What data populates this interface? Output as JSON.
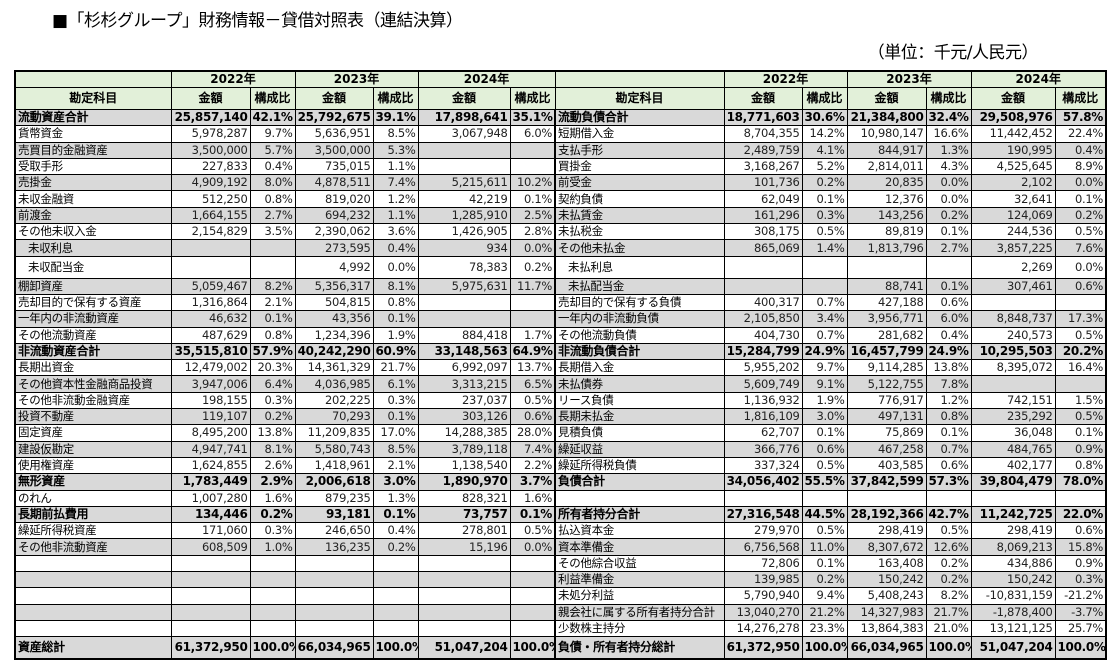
{
  "title": "■「杉杉グループ」財務情報－貸借対照表（連結決算）",
  "unit": "（単位：千元/人民元）",
  "colors": {
    "header_bg": "#e2f0d9",
    "stripe": "#d9d9d9"
  },
  "header": {
    "account": "勘定科目",
    "years": [
      "2022年",
      "2023年",
      "2024年"
    ],
    "amount": "金額",
    "ratio": "構成比"
  },
  "left_rows": [
    {
      "type": "total",
      "c": [
        "流動資産合計",
        "25,857,140",
        "42.1%",
        "25,792,675",
        "39.1%",
        "17,898,641",
        "35.1%"
      ]
    },
    {
      "c": [
        "貨幣資金",
        "5,978,287",
        "9.7%",
        "5,636,951",
        "8.5%",
        "3,067,948",
        "6.0%"
      ]
    },
    {
      "c": [
        "売買目的金融資産",
        "3,500,000",
        "5.7%",
        "3,500,000",
        "5.3%",
        "",
        ""
      ]
    },
    {
      "c": [
        "受取手形",
        "227,833",
        "0.4%",
        "735,015",
        "1.1%",
        "",
        ""
      ]
    },
    {
      "c": [
        "売掛金",
        "4,909,192",
        "8.0%",
        "4,878,511",
        "7.4%",
        "5,215,611",
        "10.2%"
      ]
    },
    {
      "c": [
        "未収金融資",
        "512,250",
        "0.8%",
        "819,020",
        "1.2%",
        "42,219",
        "0.1%"
      ]
    },
    {
      "c": [
        "前渡金",
        "1,664,155",
        "2.7%",
        "694,232",
        "1.1%",
        "1,285,910",
        "2.5%"
      ]
    },
    {
      "c": [
        "その他未収入金",
        "2,154,829",
        "3.5%",
        "2,390,062",
        "3.6%",
        "1,426,905",
        "2.8%"
      ]
    },
    {
      "type": "sub",
      "c": [
        "未収利息",
        "",
        "",
        "273,595",
        "0.4%",
        "934",
        "0.0%"
      ]
    },
    {
      "type": "sub",
      "c": [
        "未収配当金",
        "",
        "",
        "4,992",
        "0.0%",
        "78,383",
        "0.2%"
      ]
    },
    {
      "c": [
        "棚卸資産",
        "5,059,467",
        "8.2%",
        "5,356,317",
        "8.1%",
        "5,975,631",
        "11.7%"
      ]
    },
    {
      "c": [
        "売却目的で保有する資産",
        "1,316,864",
        "2.1%",
        "504,815",
        "0.8%",
        "",
        ""
      ]
    },
    {
      "c": [
        "一年内の非流動資産",
        "46,632",
        "0.1%",
        "43,356",
        "0.1%",
        "",
        ""
      ]
    },
    {
      "c": [
        "その他流動資産",
        "487,629",
        "0.8%",
        "1,234,396",
        "1.9%",
        "884,418",
        "1.7%"
      ]
    },
    {
      "type": "total",
      "c": [
        "非流動資産合計",
        "35,515,810",
        "57.9%",
        "40,242,290",
        "60.9%",
        "33,148,563",
        "64.9%"
      ]
    },
    {
      "c": [
        "長期出資金",
        "12,479,002",
        "20.3%",
        "14,361,329",
        "21.7%",
        "6,992,097",
        "13.7%"
      ]
    },
    {
      "c": [
        "その他資本性金融商品投資",
        "3,947,006",
        "6.4%",
        "4,036,985",
        "6.1%",
        "3,313,215",
        "6.5%"
      ]
    },
    {
      "c": [
        "その他非流動金融資産",
        "198,155",
        "0.3%",
        "202,225",
        "0.3%",
        "237,037",
        "0.5%"
      ]
    },
    {
      "c": [
        "投資不動産",
        "119,107",
        "0.2%",
        "70,293",
        "0.1%",
        "303,126",
        "0.6%"
      ]
    },
    {
      "c": [
        "固定資産",
        "8,495,200",
        "13.8%",
        "11,209,835",
        "17.0%",
        "14,288,385",
        "28.0%"
      ]
    },
    {
      "c": [
        "建設仮勘定",
        "4,947,741",
        "8.1%",
        "5,580,743",
        "8.5%",
        "3,789,118",
        "7.4%"
      ]
    },
    {
      "c": [
        "使用権資産",
        "1,624,855",
        "2.6%",
        "1,418,961",
        "2.1%",
        "1,138,540",
        "2.2%"
      ]
    },
    {
      "c": [
        "無形資産",
        "1,783,449",
        "2.9%",
        "2,006,618",
        "3.0%",
        "1,890,970",
        "3.7%"
      ]
    },
    {
      "c": [
        "のれん",
        "1,007,280",
        "1.6%",
        "879,235",
        "1.3%",
        "828,321",
        "1.6%"
      ]
    },
    {
      "c": [
        "長期前払費用",
        "134,446",
        "0.2%",
        "93,181",
        "0.1%",
        "73,757",
        "0.1%"
      ]
    },
    {
      "c": [
        "繰延所得税資産",
        "171,060",
        "0.3%",
        "246,650",
        "0.4%",
        "278,801",
        "0.5%"
      ]
    },
    {
      "c": [
        "その他非流動資産",
        "608,509",
        "1.0%",
        "136,235",
        "0.2%",
        "15,196",
        "0.0%"
      ]
    },
    {
      "c": [
        "",
        "",
        "",
        "",
        "",
        "",
        ""
      ]
    },
    {
      "c": [
        "",
        "",
        "",
        "",
        "",
        "",
        ""
      ]
    },
    {
      "c": [
        "",
        "",
        "",
        "",
        "",
        "",
        ""
      ]
    },
    {
      "c": [
        "",
        "",
        "",
        "",
        "",
        "",
        ""
      ]
    },
    {
      "c": [
        "",
        "",
        "",
        "",
        "",
        "",
        ""
      ]
    },
    {
      "type": "total",
      "c": [
        "資産総計",
        "61,372,950",
        "100.0%",
        "66,034,965",
        "100.0%",
        "51,047,204",
        "100.0%"
      ]
    }
  ],
  "right_rows": [
    {
      "type": "total",
      "c": [
        "流動負債合計",
        "18,771,603",
        "30.6%",
        "21,384,800",
        "32.4%",
        "29,508,976",
        "57.8%"
      ]
    },
    {
      "c": [
        "短期借入金",
        "8,704,355",
        "14.2%",
        "10,980,147",
        "16.6%",
        "11,442,452",
        "22.4%"
      ]
    },
    {
      "c": [
        "支払手形",
        "2,489,759",
        "4.1%",
        "844,917",
        "1.3%",
        "190,995",
        "0.4%"
      ]
    },
    {
      "c": [
        "買掛金",
        "3,168,267",
        "5.2%",
        "2,814,011",
        "4.3%",
        "4,525,645",
        "8.9%"
      ]
    },
    {
      "c": [
        "前受金",
        "101,736",
        "0.2%",
        "20,835",
        "0.0%",
        "2,102",
        "0.0%"
      ]
    },
    {
      "c": [
        "契約負債",
        "62,049",
        "0.1%",
        "12,376",
        "0.0%",
        "32,641",
        "0.1%"
      ]
    },
    {
      "c": [
        "未払賃金",
        "161,296",
        "0.3%",
        "143,256",
        "0.2%",
        "124,069",
        "0.2%"
      ]
    },
    {
      "c": [
        "未払税金",
        "308,175",
        "0.5%",
        "89,819",
        "0.1%",
        "244,536",
        "0.5%"
      ]
    },
    {
      "c": [
        "その他未払金",
        "865,069",
        "1.4%",
        "1,813,796",
        "2.7%",
        "3,857,225",
        "7.6%"
      ]
    },
    {
      "type": "sub",
      "c": [
        "未払利息",
        "",
        "",
        "",
        "",
        "2,269",
        "0.0%"
      ]
    },
    {
      "type": "sub",
      "c": [
        "未払配当金",
        "",
        "",
        "88,741",
        "0.1%",
        "307,461",
        "0.6%"
      ]
    },
    {
      "c": [
        "売却目的で保有する負債",
        "400,317",
        "0.7%",
        "427,188",
        "0.6%",
        "",
        ""
      ]
    },
    {
      "c": [
        "一年内の非流動負債",
        "2,105,850",
        "3.4%",
        "3,956,771",
        "6.0%",
        "8,848,737",
        "17.3%"
      ]
    },
    {
      "c": [
        "その他流動負債",
        "404,730",
        "0.7%",
        "281,682",
        "0.4%",
        "240,573",
        "0.5%"
      ]
    },
    {
      "type": "total",
      "c": [
        "非流動負債合計",
        "15,284,799",
        "24.9%",
        "16,457,799",
        "24.9%",
        "10,295,503",
        "20.2%"
      ]
    },
    {
      "c": [
        "長期借入金",
        "5,955,202",
        "9.7%",
        "9,114,285",
        "13.8%",
        "8,395,072",
        "16.4%"
      ]
    },
    {
      "c": [
        "未払債券",
        "5,609,749",
        "9.1%",
        "5,122,755",
        "7.8%",
        "",
        ""
      ]
    },
    {
      "c": [
        "リース負債",
        "1,136,932",
        "1.9%",
        "776,917",
        "1.2%",
        "742,151",
        "1.5%"
      ]
    },
    {
      "c": [
        "長期未払金",
        "1,816,109",
        "3.0%",
        "497,131",
        "0.8%",
        "235,292",
        "0.5%"
      ]
    },
    {
      "c": [
        "見積負債",
        "62,707",
        "0.1%",
        "75,869",
        "0.1%",
        "36,048",
        "0.1%"
      ]
    },
    {
      "c": [
        "繰延収益",
        "366,776",
        "0.6%",
        "467,258",
        "0.7%",
        "484,765",
        "0.9%"
      ]
    },
    {
      "c": [
        "繰延所得税負債",
        "337,324",
        "0.5%",
        "403,585",
        "0.6%",
        "402,177",
        "0.8%"
      ]
    },
    {
      "type": "total",
      "c": [
        "負債合計",
        "34,056,402",
        "55.5%",
        "37,842,599",
        "57.3%",
        "39,804,479",
        "78.0%"
      ]
    },
    {
      "c": [
        "",
        "",
        "",
        "",
        "",
        "",
        ""
      ]
    },
    {
      "type": "total",
      "c": [
        "所有者持分合計",
        "27,316,548",
        "44.5%",
        "28,192,366",
        "42.7%",
        "11,242,725",
        "22.0%"
      ]
    },
    {
      "c": [
        "払込資本金",
        "279,970",
        "0.5%",
        "298,419",
        "0.5%",
        "298,419",
        "0.6%"
      ]
    },
    {
      "c": [
        "資本準備金",
        "6,756,568",
        "11.0%",
        "8,307,672",
        "12.6%",
        "8,069,213",
        "15.8%"
      ]
    },
    {
      "c": [
        "その他綜合収益",
        "72,806",
        "0.1%",
        "163,408",
        "0.2%",
        "434,886",
        "0.9%"
      ]
    },
    {
      "c": [
        "利益準備金",
        "139,985",
        "0.2%",
        "150,242",
        "0.2%",
        "150,242",
        "0.3%"
      ]
    },
    {
      "c": [
        "未処分利益",
        "5,790,940",
        "9.4%",
        "5,408,243",
        "8.2%",
        "-10,831,159",
        "-21.2%"
      ]
    },
    {
      "c": [
        "親会社に属する所有者持分合計",
        "13,040,270",
        "21.2%",
        "14,327,983",
        "21.7%",
        "-1,878,400",
        "-3.7%"
      ]
    },
    {
      "c": [
        "少数株主持分",
        "14,276,278",
        "23.3%",
        "13,864,383",
        "21.0%",
        "13,121,125",
        "25.7%"
      ]
    },
    {
      "type": "total",
      "c": [
        "負債・所有者持分総計",
        "61,372,950",
        "100.0%",
        "66,034,965",
        "100.0%",
        "51,047,204",
        "100.0%"
      ]
    }
  ]
}
